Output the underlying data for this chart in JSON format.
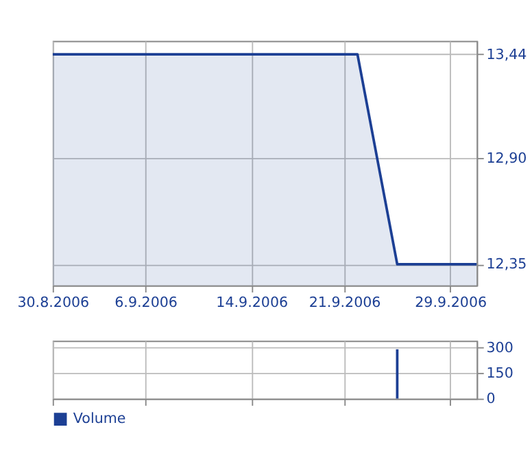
{
  "chart_data": [
    {
      "type": "area",
      "x": [
        "2006-08-30",
        "2006-09-22",
        "2006-09-25",
        "2006-10-01"
      ],
      "series": [
        {
          "color": "#1c3f94",
          "values": [
            13.44,
            13.44,
            12.35,
            12.35
          ]
        }
      ],
      "xlim": [
        "2006-08-30",
        "2006-10-01"
      ],
      "xticks": [
        {
          "value": "2006-08-30",
          "label": "30.8.2006"
        },
        {
          "value": "2006-09-06",
          "label": "6.9.2006"
        },
        {
          "value": "2006-09-14",
          "label": "14.9.2006"
        },
        {
          "value": "2006-09-21",
          "label": "21.9.2006"
        },
        {
          "value": "2006-09-29",
          "label": "29.9.2006"
        }
      ],
      "ylim": [
        12.24,
        13.51
      ],
      "yticks": [
        {
          "value": 12.35,
          "label": "12,35"
        },
        {
          "value": 12.9,
          "label": "12,90"
        },
        {
          "value": 13.44,
          "label": "13,44"
        }
      ],
      "grid": true,
      "legend": false
    },
    {
      "type": "bar",
      "x": [
        "2006-09-25"
      ],
      "series": [
        {
          "name": "Volume",
          "color": "#1c3f94",
          "values": [
            290
          ]
        }
      ],
      "xlim": [
        "2006-08-30",
        "2006-10-01"
      ],
      "xticks": [
        {
          "value": "2006-08-30",
          "label": null
        },
        {
          "value": "2006-09-06",
          "label": null
        },
        {
          "value": "2006-09-14",
          "label": null
        },
        {
          "value": "2006-09-21",
          "label": null
        },
        {
          "value": "2006-09-29",
          "label": null
        }
      ],
      "ylim": [
        0,
        340
      ],
      "yticks": [
        0,
        150,
        300
      ],
      "grid": true,
      "legend": "bottom left",
      "tick_labels": "y"
    }
  ]
}
